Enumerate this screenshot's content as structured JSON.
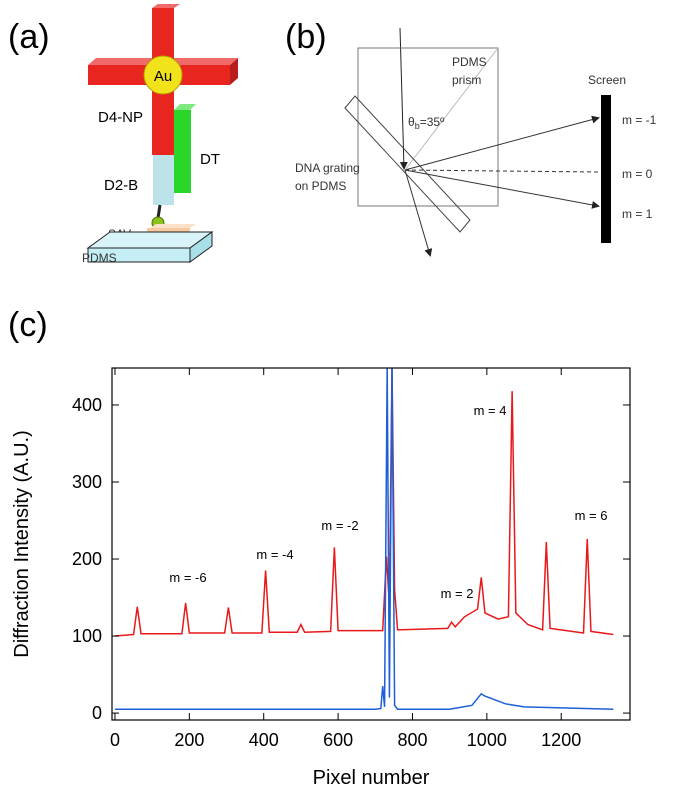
{
  "panel_a": {
    "label": "(a)",
    "au": "Au",
    "d4np": "D4-NP",
    "dt": "DT",
    "d2b": "D2-B",
    "sav": "SAV",
    "pdms": "PDMS"
  },
  "panel_b": {
    "label": "(b)",
    "prism": [
      "PDMS",
      "prism"
    ],
    "angle": {
      "symbol": "θ",
      "subscript": "b",
      "rest": "=35º"
    },
    "grating": [
      "DNA grating",
      "on PDMS"
    ],
    "screen": "Screen",
    "orders": [
      "m = -1",
      "m = 0",
      "m = 1"
    ]
  },
  "chart_data": {
    "type": "line",
    "panel_label": "(c)",
    "xlabel": "Pixel number",
    "ylabel": "Diffraction Intensity (A.U.)",
    "xlim": [
      -8,
      1385
    ],
    "ylim": [
      -9,
      448
    ],
    "xticks": [
      0,
      200,
      400,
      600,
      800,
      1000,
      1200
    ],
    "yticks": [
      0,
      100,
      200,
      300,
      400
    ],
    "series": [
      {
        "color": "#e8191b",
        "x": [
          0,
          50,
          60,
          70,
          180,
          190,
          200,
          295,
          305,
          315,
          395,
          405,
          415,
          490,
          500,
          510,
          580,
          590,
          600,
          720,
          730,
          738,
          745,
          752,
          760,
          895,
          905,
          915,
          940,
          975,
          985,
          995,
          1030,
          1058,
          1068,
          1078,
          1110,
          1150,
          1160,
          1170,
          1260,
          1270,
          1280,
          1340
        ],
        "values": [
          100,
          102,
          138,
          103,
          103,
          143,
          104,
          104,
          137,
          104,
          104,
          185,
          105,
          105,
          115,
          105,
          106,
          215,
          107,
          107,
          203,
          140,
          450,
          160,
          108,
          110,
          118,
          112,
          125,
          135,
          176,
          130,
          122,
          125,
          418,
          130,
          115,
          108,
          222,
          110,
          104,
          226,
          106,
          102
        ]
      },
      {
        "color": "#1c5fd6",
        "x": [
          0,
          700,
          715,
          720,
          725,
          732,
          738,
          745,
          752,
          760,
          900,
          960,
          985,
          995,
          1050,
          1100,
          1340
        ],
        "values": [
          5,
          5,
          6,
          35,
          8,
          450,
          20,
          450,
          10,
          5,
          5,
          10,
          25,
          22,
          12,
          8,
          5
        ]
      }
    ],
    "annotations": [
      "m = -6",
      "m = -4",
      "m = -2",
      "m = 2",
      "m = 4",
      "m = 6"
    ]
  }
}
